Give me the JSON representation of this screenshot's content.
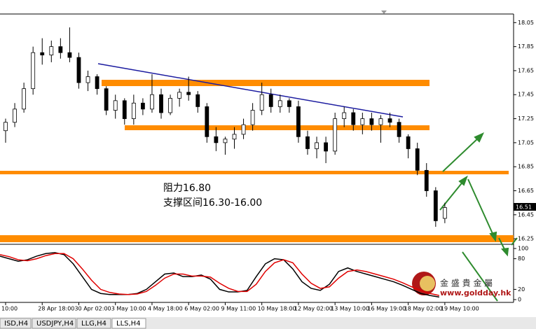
{
  "chart_data": [
    {
      "type": "candlestick",
      "categories": [
        "10:00",
        null,
        null,
        null,
        "28 Apr 18:00",
        null,
        null,
        null,
        "30 Apr 02:00",
        null,
        null,
        null,
        "3 May 10:00",
        null,
        null,
        null,
        "4 May 18:00",
        null,
        null,
        null,
        "6 May 02:00",
        null,
        null,
        null,
        "9 May 11:00",
        null,
        null,
        null,
        "10 May 18:00",
        null,
        null,
        null,
        "12 May 02:00",
        null,
        null,
        null,
        "13 May 10:00",
        null,
        null,
        null,
        "16 May 19:00",
        null,
        null,
        null,
        "18 May 02:00",
        null,
        null,
        null,
        "19 May 10:00"
      ],
      "open": [
        17.15,
        17.22,
        17.33,
        17.5,
        17.8,
        17.78,
        17.85,
        17.8,
        17.76,
        17.55,
        17.6,
        17.5,
        17.32,
        17.4,
        17.25,
        17.38,
        17.33,
        17.45,
        17.3,
        17.42,
        17.47,
        17.45,
        17.35,
        17.1,
        17.05,
        17.08,
        17.12,
        17.2,
        17.32,
        17.45,
        17.35,
        17.4,
        17.35,
        17.1,
        17.0,
        17.05,
        16.98,
        17.25,
        17.3,
        17.2,
        17.25,
        17.2,
        17.25,
        17.22,
        17.1,
        17.0,
        16.82,
        16.65,
        16.42
      ],
      "high": [
        17.25,
        17.38,
        17.55,
        17.85,
        17.92,
        17.9,
        17.92,
        18.01,
        17.8,
        17.65,
        17.62,
        17.52,
        17.45,
        17.42,
        17.45,
        17.42,
        17.62,
        17.5,
        17.45,
        17.5,
        17.6,
        17.48,
        17.38,
        17.18,
        17.1,
        17.18,
        17.25,
        17.38,
        17.55,
        17.5,
        17.45,
        17.42,
        17.4,
        17.15,
        17.1,
        17.1,
        17.3,
        17.35,
        17.33,
        17.3,
        17.3,
        17.28,
        17.3,
        17.25,
        17.12,
        17.05,
        16.88,
        16.68,
        16.55
      ],
      "low": [
        17.05,
        17.18,
        17.3,
        17.45,
        17.7,
        17.72,
        17.75,
        17.72,
        17.5,
        17.48,
        17.45,
        17.28,
        17.25,
        17.2,
        17.2,
        17.28,
        17.3,
        17.25,
        17.28,
        17.35,
        17.4,
        17.3,
        17.05,
        16.98,
        16.95,
        17.0,
        17.08,
        17.15,
        17.28,
        17.3,
        17.3,
        17.3,
        17.05,
        16.95,
        16.92,
        16.88,
        16.95,
        17.18,
        17.15,
        17.12,
        17.15,
        17.05,
        17.18,
        17.05,
        16.92,
        16.78,
        16.6,
        16.35,
        16.38
      ],
      "close": [
        17.22,
        17.33,
        17.5,
        17.8,
        17.78,
        17.85,
        17.8,
        17.76,
        17.55,
        17.6,
        17.5,
        17.32,
        17.4,
        17.25,
        17.38,
        17.33,
        17.45,
        17.3,
        17.42,
        17.47,
        17.45,
        17.35,
        17.1,
        17.05,
        17.08,
        17.12,
        17.2,
        17.32,
        17.45,
        17.35,
        17.4,
        17.35,
        17.1,
        17.0,
        17.05,
        16.98,
        17.25,
        17.3,
        17.2,
        17.25,
        17.2,
        17.25,
        17.22,
        17.1,
        17.0,
        16.82,
        16.65,
        16.4,
        16.51
      ],
      "ylim": [
        16.21,
        18.11
      ],
      "yticks": [
        18.05,
        17.85,
        17.65,
        17.45,
        17.25,
        17.05,
        16.85,
        16.65,
        16.45,
        16.25
      ],
      "annotations": [
        "阻力16.80",
        "支撑区间16.30-16.00"
      ]
    },
    {
      "type": "line",
      "series": [
        {
          "color": "#000000",
          "values": [
            85,
            80,
            75,
            78,
            85,
            90,
            92,
            88,
            70,
            45,
            20,
            12,
            10,
            10,
            10,
            12,
            20,
            35,
            50,
            52,
            45,
            45,
            48,
            40,
            20,
            15,
            15,
            18,
            45,
            70,
            80,
            78,
            60,
            35,
            22,
            18,
            30,
            55,
            62,
            55,
            50,
            45,
            40,
            35,
            28,
            20,
            12,
            8,
            5
          ]
        },
        {
          "color": "#e00000",
          "values": [
            88,
            84,
            78,
            76,
            80,
            86,
            90,
            90,
            80,
            60,
            38,
            20,
            14,
            11,
            10,
            11,
            16,
            28,
            42,
            50,
            50,
            46,
            46,
            44,
            32,
            22,
            16,
            16,
            30,
            55,
            72,
            78,
            72,
            50,
            32,
            22,
            25,
            42,
            55,
            58,
            55,
            50,
            45,
            40,
            33,
            25,
            18,
            12,
            8
          ]
        }
      ],
      "ylim": [
        0,
        100
      ],
      "yticks": [
        100,
        80,
        20,
        0
      ]
    }
  ],
  "watermark": {
    "name": "金 盛 貴 金 屬",
    "url": "www.goldday.hk"
  },
  "tabs": [
    "ISD,H4",
    "USDJPY,H4",
    "LLG,H4",
    "LLS,H4"
  ]
}
